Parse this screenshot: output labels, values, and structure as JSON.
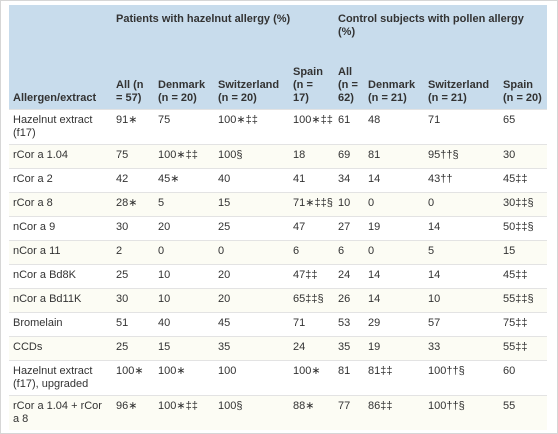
{
  "table": {
    "corner": "Allergen/extract",
    "groups": [
      "Patients with hazelnut allergy (%)",
      "Control subjects with pollen allergy (%)"
    ],
    "columns": [
      "All (n = 57)",
      "Denmark (n = 20)",
      "Switzerland (n = 20)",
      "Spain (n = 17)",
      "All (n = 62)",
      "Denmark (n = 21)",
      "Switzerland (n = 21)",
      "Spain (n = 20)"
    ],
    "rows": [
      [
        "Hazelnut extract (f17)",
        "91∗",
        "75",
        "100∗‡‡",
        "100∗‡‡",
        "61",
        "48",
        "71",
        "65"
      ],
      [
        "rCor a 1.04",
        "75",
        "100∗‡‡",
        "100§",
        "18",
        "69",
        "81",
        "95††§",
        "30"
      ],
      [
        "rCor a 2",
        "42",
        "45∗",
        "40",
        "41",
        "34",
        "14",
        "43††",
        "45‡‡"
      ],
      [
        "rCor a 8",
        "28∗",
        "5",
        "15",
        "71∗‡‡§",
        "10",
        "0",
        "0",
        "30‡‡§"
      ],
      [
        "nCor a 9",
        "30",
        "20",
        "25",
        "47",
        "27",
        "19",
        "14",
        "50‡‡§"
      ],
      [
        "nCor a 11",
        "2",
        "0",
        "0",
        "6",
        "6",
        "0",
        "5",
        "15"
      ],
      [
        "nCor a Bd8K",
        "25",
        "10",
        "20",
        "47‡‡",
        "24",
        "14",
        "14",
        "45‡‡"
      ],
      [
        "nCor a Bd11K",
        "30",
        "10",
        "20",
        "65‡‡§",
        "26",
        "14",
        "10",
        "55‡‡§"
      ],
      [
        "Bromelain",
        "51",
        "40",
        "45",
        "71",
        "53",
        "29",
        "57",
        "75‡‡"
      ],
      [
        "CCDs",
        "25",
        "15",
        "35",
        "24",
        "35",
        "19",
        "33",
        "55‡‡"
      ],
      [
        "Hazelnut extract (f17), upgraded",
        "100∗",
        "100∗",
        "100",
        "100∗",
        "81",
        "81‡‡",
        "100††§",
        "60"
      ],
      [
        "rCor a 1.04 + rCor a 8",
        "96∗",
        "100∗‡‡",
        "100§",
        "88∗",
        "77",
        "86‡‡",
        "100††§",
        "55"
      ]
    ]
  }
}
